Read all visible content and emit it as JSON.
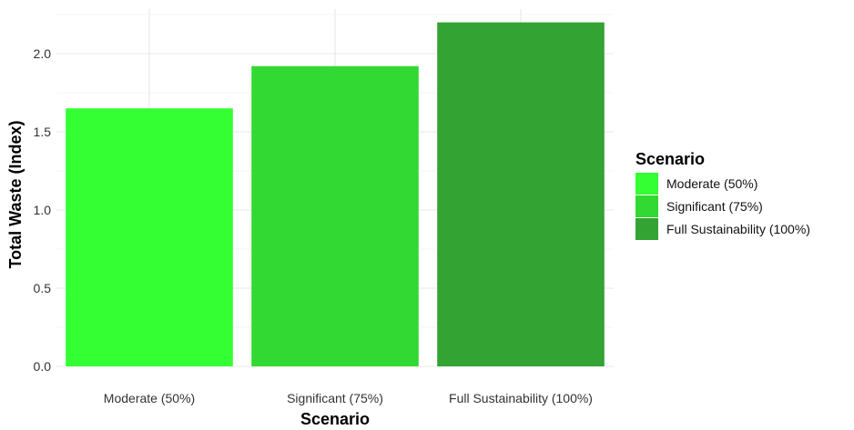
{
  "chart_data": {
    "type": "bar",
    "categories": [
      "Moderate (50%)",
      "Significant (75%)",
      "Full Sustainability (100%)"
    ],
    "values": [
      1.65,
      1.92,
      2.2
    ],
    "colors": [
      "#33ff33",
      "#33d933",
      "#33a333"
    ],
    "xlabel": "Scenario",
    "ylabel": "Total Waste (Index)",
    "ylim": [
      0,
      2.2
    ],
    "yticks": [
      0.0,
      0.5,
      1.0,
      1.5,
      2.0
    ],
    "ytick_labels": [
      "0.0",
      "0.5",
      "1.0",
      "1.5",
      "2.0"
    ],
    "grid": true,
    "legend": {
      "title": "Scenario",
      "placement": "right",
      "entries": [
        "Moderate (50%)",
        "Significant (75%)",
        "Full Sustainability (100%)"
      ]
    }
  }
}
